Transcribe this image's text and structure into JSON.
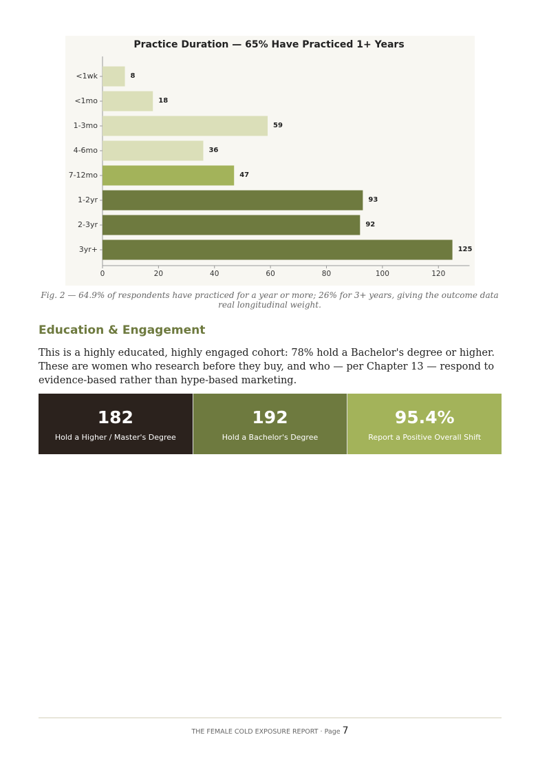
{
  "chart_data": {
    "type": "hbar",
    "title": "Practice Duration — 65% Have Practiced 1+ Years",
    "categories": [
      "<1wk",
      "<1mo",
      "1-3mo",
      "4-6mo",
      "7-12mo",
      "1-2yr",
      "2-3yr",
      "3yr+"
    ],
    "values": [
      8,
      18,
      59,
      36,
      47,
      93,
      92,
      125
    ],
    "colors": [
      "#dbdfb9",
      "#dbdfb9",
      "#dbdfb9",
      "#dbdfb9",
      "#a3b35a",
      "#6e7a3f",
      "#6e7a3f",
      "#6e7a3f"
    ],
    "xlim": [
      0,
      131
    ],
    "xticks": [
      0,
      20,
      40,
      60,
      80,
      100,
      120
    ]
  },
  "caption": "Fig. 2 — 64.9% of respondents have practiced for a year or more; 26% for 3+ years, giving the outcome data real longitudinal weight.",
  "section": {
    "heading": "Education & Engagement",
    "body": "This is a highly educated, highly engaged cohort: 78% hold a Bachelor's degree or higher. These are women who research before they buy, and who — per Chapter 13 — respond to evidence-based rather than hype-based marketing."
  },
  "stats": [
    {
      "value": "182",
      "label": "Hold a Higher / Master's Degree",
      "color": "#2b221d"
    },
    {
      "value": "192",
      "label": "Hold a Bachelor's Degree",
      "color": "#6e7a3f"
    },
    {
      "value": "95.4%",
      "label": "Report a Positive Overall Shift",
      "color": "#a3b35a"
    }
  ],
  "footer": {
    "report": "THE FEMALE COLD EXPOSURE REPORT",
    "separator": "·",
    "page_label": "Page",
    "page_number": "7"
  }
}
